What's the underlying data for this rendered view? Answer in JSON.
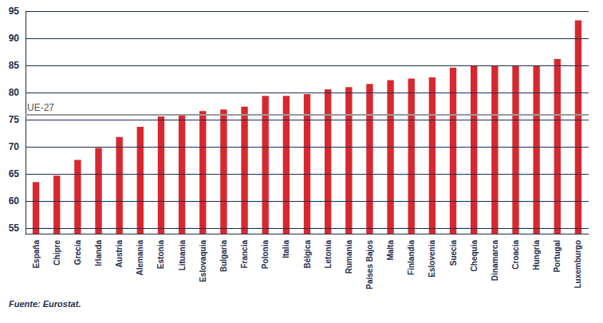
{
  "chart_data": {
    "type": "bar",
    "categories": [
      "España",
      "Chipre",
      "Grecia",
      "Irlanda",
      "Austria",
      "Alemania",
      "Estonia",
      "Lituania",
      "Eslovaquia",
      "Bulgaria",
      "Francia",
      "Polonia",
      "Italia",
      "Bélgica",
      "Letonia",
      "Rumania",
      "Países Bajos",
      "Malta",
      "Finlandia",
      "Eslovenia",
      "Suecia",
      "Chequia",
      "Dinamarca",
      "Croacia",
      "Hungría",
      "Portugal",
      "Luxemburgo"
    ],
    "values": [
      63.5,
      64.7,
      67.6,
      69.8,
      71.8,
      73.7,
      75.6,
      75.8,
      76.6,
      76.9,
      77.4,
      79.4,
      79.4,
      79.7,
      80.6,
      81.0,
      81.6,
      82.3,
      82.6,
      82.8,
      84.6,
      85.0,
      85.0,
      85.0,
      85.0,
      86.2,
      93.3
    ],
    "color": "#d7282f",
    "ylim": [
      54,
      95
    ],
    "yticks": [
      55,
      60,
      65,
      70,
      75,
      80,
      85,
      90,
      95
    ],
    "grid": true,
    "reference_line": {
      "label": "UE-27",
      "value": 75.9
    },
    "source": "Fuente: Eurostat."
  }
}
